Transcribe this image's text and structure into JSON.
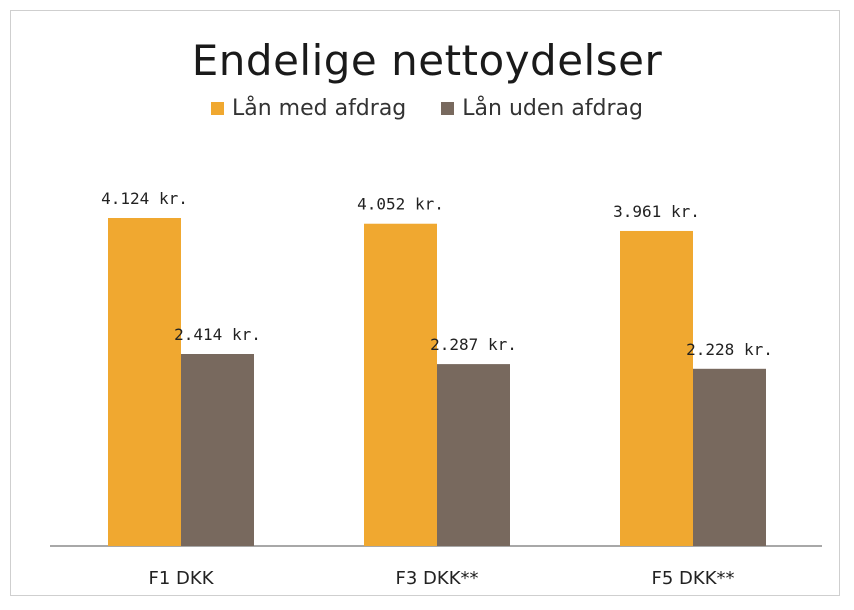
{
  "chart_data": {
    "type": "bar",
    "title": "Endelige nettoydelser",
    "categories": [
      "F1 DKK",
      "F3 DKK**",
      "F5 DKK**"
    ],
    "series": [
      {
        "name": "Lån med afdrag",
        "color": "#F0A830",
        "values": [
          4124,
          4052,
          3961
        ],
        "labels": [
          "4.124 kr.",
          "4.052 kr.",
          "3.961 kr."
        ]
      },
      {
        "name": "Lån uden afdrag",
        "color": "#78695E",
        "values": [
          2414,
          2287,
          2228
        ],
        "labels": [
          "2.414 kr.",
          "2.287 kr.",
          "2.228 kr."
        ]
      }
    ],
    "legend_position": "top",
    "grid": false,
    "ylim": [
      0,
      5000
    ]
  }
}
